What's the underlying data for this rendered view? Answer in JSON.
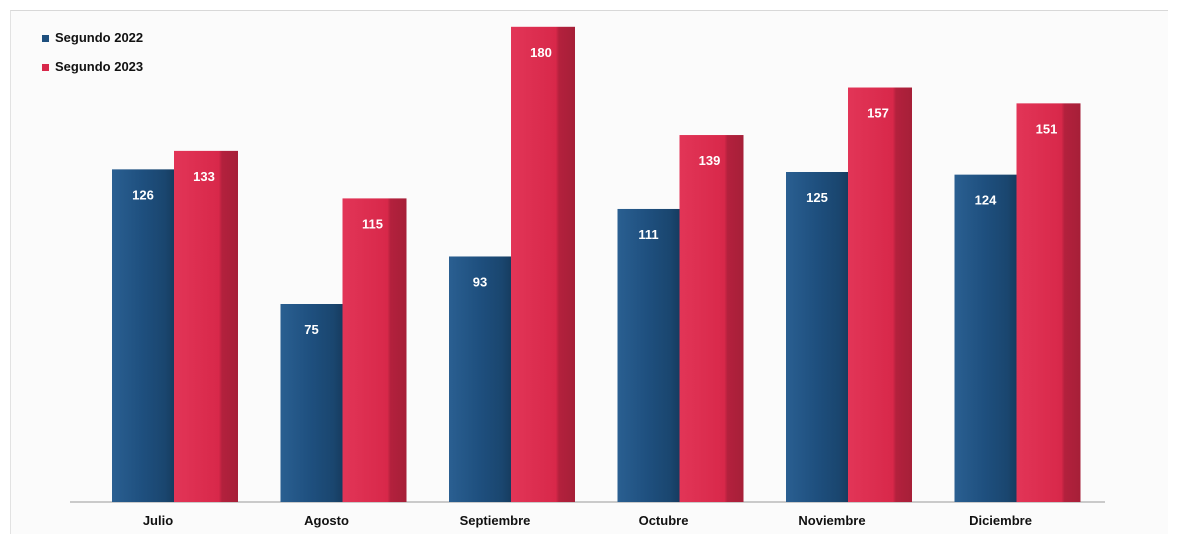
{
  "chart_data": {
    "type": "bar",
    "categories": [
      "Julio",
      "Agosto",
      "Septiembre",
      "Octubre",
      "Noviembre",
      "Diciembre"
    ],
    "series": [
      {
        "name": "Segundo 2022",
        "values": [
          126,
          75,
          93,
          111,
          125,
          124
        ],
        "color": "#1e4f7e"
      },
      {
        "name": "Segundo 2023",
        "values": [
          133,
          115,
          180,
          139,
          157,
          151
        ],
        "color": "#d8284a"
      }
    ],
    "title": "",
    "xlabel": "",
    "ylabel": "",
    "ylim": [
      0,
      180
    ],
    "grid": false,
    "legend": "top-left",
    "data_labels": true
  }
}
